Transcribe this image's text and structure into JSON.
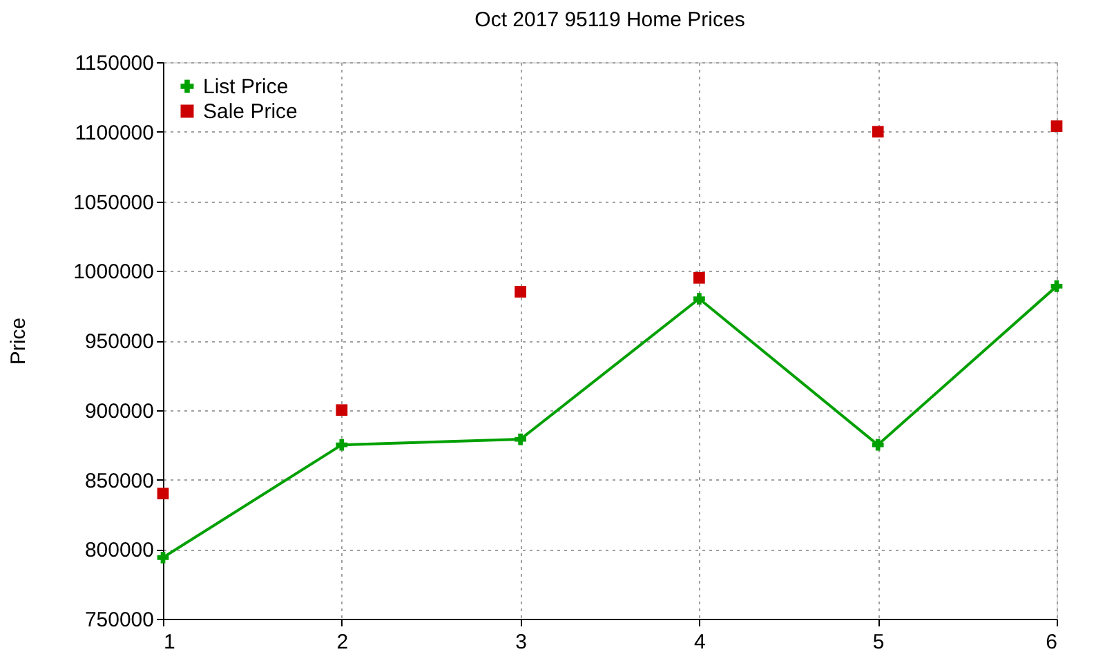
{
  "chart_data": {
    "type": "line",
    "title": "Oct 2017 95119 Home Prices",
    "ylabel": "Price",
    "x": [
      1,
      2,
      3,
      4,
      5,
      6
    ],
    "xlim": [
      1,
      6
    ],
    "xticks": [
      1,
      2,
      3,
      4,
      5,
      6
    ],
    "ylim": [
      750000,
      1150000
    ],
    "yticks": [
      750000,
      800000,
      850000,
      900000,
      950000,
      1000000,
      1050000,
      1100000,
      1150000
    ],
    "grid": true,
    "legend": "top left",
    "marker": "cross",
    "series": [
      {
        "name": "List Price",
        "color": "#00a000",
        "values": [
          794000,
          875000,
          879000,
          980000,
          875000,
          989000
        ]
      },
      {
        "name": "Sale Price",
        "type": "scatter",
        "color": "#cc0000",
        "marker": "square",
        "values": [
          840000,
          900000,
          985000,
          995000,
          1100000,
          1104000
        ]
      }
    ]
  }
}
